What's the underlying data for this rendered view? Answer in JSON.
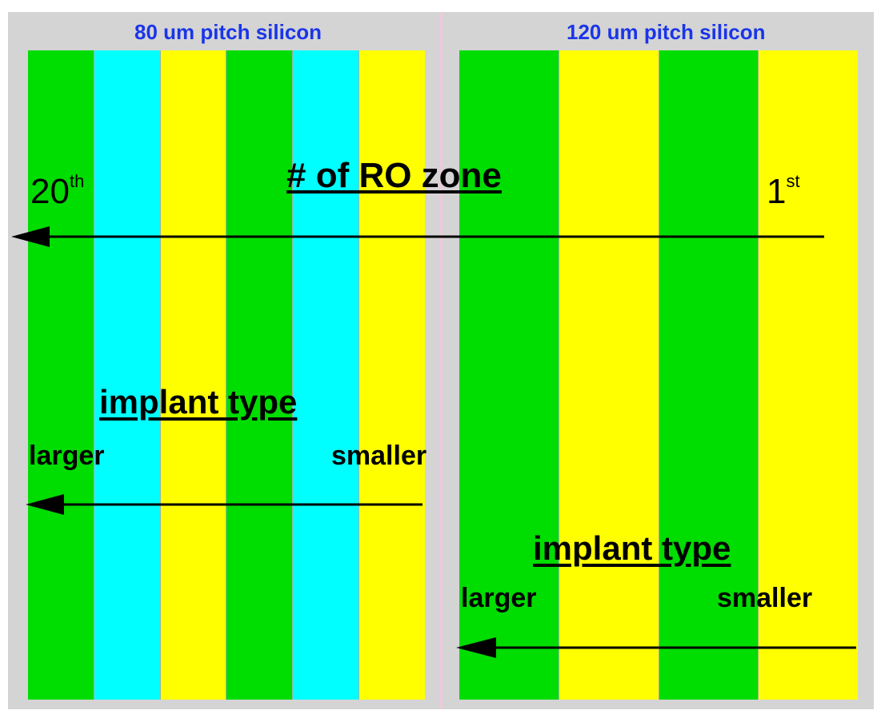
{
  "left_panel": {
    "title": "80 um pitch silicon",
    "stripe_colors": [
      "#00dd00",
      "#00ffff",
      "#ffff00",
      "#00dd00",
      "#00ffff",
      "#ffff00"
    ]
  },
  "right_panel": {
    "title": "120 um pitch silicon",
    "stripe_colors": [
      "#00dd00",
      "#ffff00",
      "#00dd00",
      "#ffff00"
    ]
  },
  "ro_zone": {
    "heading": "# of RO zone",
    "last_number": "20",
    "last_suffix": "th",
    "first_number": "1",
    "first_suffix": "st"
  },
  "implant_left": {
    "heading": "implant type",
    "larger": "larger",
    "smaller": "smaller"
  },
  "implant_right": {
    "heading": "implant type",
    "larger": "larger",
    "smaller": "smaller"
  },
  "colors": {
    "panel_bg": "#d4d4d4",
    "title": "#1a35e8",
    "arrow": "#000000"
  }
}
